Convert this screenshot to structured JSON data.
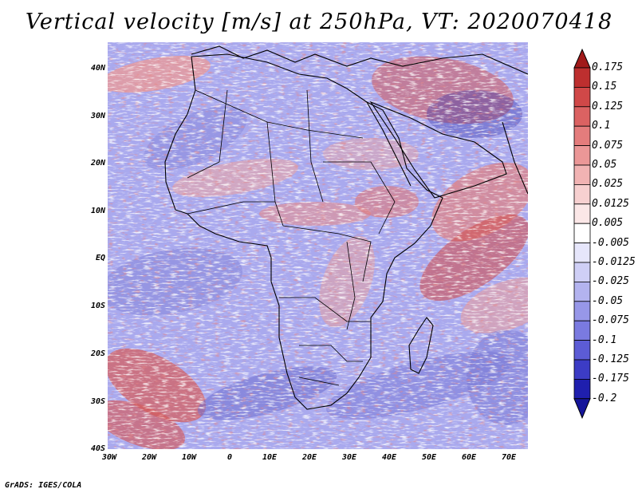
{
  "title": "Vertical velocity [m/s] at 250hPa, VT: 2020070418",
  "footer": "GrADS: IGES/COLA",
  "map": {
    "variable": "Vertical velocity",
    "units": "m/s",
    "level": "250hPa",
    "valid_time": "2020070418",
    "region": "Africa",
    "lat_labels": [
      "40N",
      "30N",
      "20N",
      "10N",
      "EQ",
      "10S",
      "20S",
      "30S",
      "40S"
    ],
    "lon_labels": [
      "30W",
      "20W",
      "10W",
      "0",
      "10E",
      "20E",
      "30E",
      "40E",
      "50E",
      "60E",
      "70E"
    ]
  },
  "colorbar": {
    "labels": [
      "0.175",
      "0.15",
      "0.125",
      "0.1",
      "0.075",
      "0.05",
      "0.025",
      "0.0125",
      "0.005",
      "-0.005",
      "-0.0125",
      "-0.025",
      "-0.05",
      "-0.075",
      "-0.1",
      "-0.125",
      "-0.175",
      "-0.2"
    ],
    "colors": [
      "#a11a1a",
      "#bd2f2f",
      "#d04848",
      "#db6262",
      "#e47c7c",
      "#eb9797",
      "#f1b3b3",
      "#f7d0d0",
      "#fbe7e7",
      "#ffffff",
      "#e6e6fb",
      "#cfcff6",
      "#b3b3ef",
      "#9797e8",
      "#7a7ae0",
      "#5c5cd5",
      "#3c3cc5",
      "#1f1fae",
      "#15159a"
    ]
  }
}
